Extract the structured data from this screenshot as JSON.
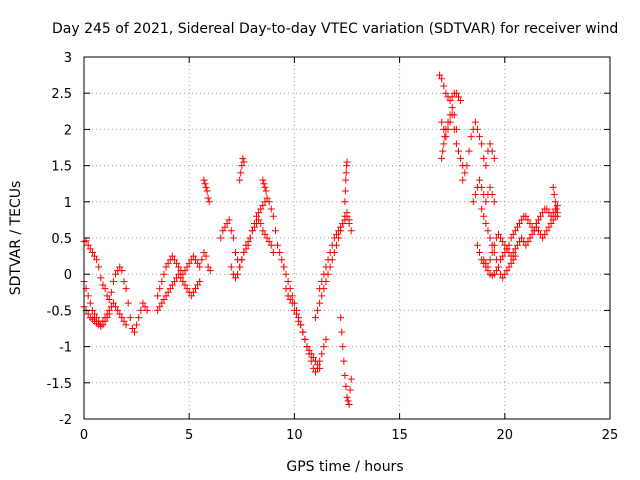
{
  "chart_data": {
    "type": "scatter",
    "title": "Day 245 of 2021, Sidereal Day-to-day VTEC variation (SDTVAR) for receiver wind",
    "xlabel": "GPS time / hours",
    "ylabel": "SDTVAR / TECUs",
    "xlim": [
      0,
      25
    ],
    "ylim": [
      -2,
      3
    ],
    "xticks": [
      0,
      5,
      10,
      15,
      20,
      25
    ],
    "xtick_labels": [
      "0",
      "5",
      "10",
      "15",
      "20",
      "25"
    ],
    "yticks": [
      -2,
      -1.5,
      -1,
      -0.5,
      0,
      0.5,
      1,
      1.5,
      2,
      2.5,
      3
    ],
    "ytick_labels": [
      "-2",
      "-1.5",
      "-1",
      "-0.5",
      "0",
      "0.5",
      "1",
      "1.5",
      "2",
      "2.5",
      "3"
    ],
    "grid": true,
    "marker": "+",
    "series": [
      {
        "name": "SDTVAR",
        "color": "#ff0000",
        "x": [
          0.0,
          0.1,
          0.2,
          0.3,
          0.4,
          0.5,
          0.6,
          0.7,
          0.8,
          0.9,
          1.0,
          1.1,
          1.2,
          1.3,
          1.4,
          1.5,
          1.6,
          1.7,
          1.8,
          1.9,
          2.0,
          2.1,
          2.2,
          2.3,
          2.4,
          2.5,
          2.6,
          2.7,
          2.8,
          2.9,
          3.0,
          0.0,
          0.1,
          0.2,
          0.3,
          0.4,
          0.5,
          0.6,
          0.7,
          0.8,
          0.9,
          1.0,
          1.1,
          1.2,
          1.3,
          1.4,
          1.5,
          1.6,
          1.7,
          1.8,
          1.9,
          2.0,
          0.0,
          0.1,
          0.2,
          0.3,
          0.4,
          0.5,
          0.6,
          0.7,
          0.8,
          0.9,
          1.0,
          1.1,
          1.2,
          3.5,
          3.6,
          3.7,
          3.8,
          3.9,
          4.0,
          4.1,
          4.2,
          4.3,
          4.4,
          4.5,
          4.6,
          4.7,
          4.8,
          4.9,
          5.0,
          5.1,
          5.2,
          5.3,
          5.4,
          5.5,
          5.6,
          5.7,
          5.8,
          5.9,
          6.0,
          3.5,
          3.6,
          3.7,
          3.8,
          3.9,
          4.0,
          4.1,
          4.2,
          4.3,
          4.4,
          4.5,
          4.6,
          4.7,
          4.8,
          4.9,
          5.0,
          5.1,
          5.2,
          5.3,
          5.4,
          5.5,
          5.7,
          5.75,
          5.8,
          5.85,
          5.9,
          5.95,
          6.5,
          6.6,
          6.7,
          6.8,
          6.9,
          7.0,
          7.1,
          7.2,
          7.3,
          7.4,
          7.5,
          7.6,
          7.7,
          7.8,
          7.9,
          8.0,
          8.1,
          8.2,
          8.3,
          8.4,
          8.5,
          8.6,
          8.7,
          8.8,
          8.9,
          9.0,
          9.1,
          9.2,
          9.3,
          9.4,
          9.5,
          7.0,
          7.1,
          7.2,
          7.3,
          7.4,
          7.5,
          7.6,
          7.7,
          7.8,
          7.9,
          8.0,
          8.1,
          8.2,
          8.3,
          8.4,
          8.5,
          8.6,
          8.7,
          8.8,
          8.9,
          9.0,
          7.4,
          7.45,
          7.5,
          7.55,
          7.6,
          8.5,
          8.55,
          8.6,
          8.65,
          9.5,
          9.6,
          9.7,
          9.8,
          9.9,
          10.0,
          10.1,
          10.2,
          10.3,
          10.4,
          10.5,
          10.6,
          10.7,
          10.8,
          10.9,
          11.0,
          11.1,
          11.2,
          11.3,
          11.4,
          11.5,
          9.6,
          9.7,
          9.8,
          9.9,
          10.0,
          10.1,
          10.2,
          10.3,
          10.4,
          10.5,
          10.6,
          10.7,
          10.8,
          10.9,
          11.0,
          11.1,
          11.2,
          11.0,
          11.1,
          11.2,
          11.3,
          11.4,
          11.5,
          11.6,
          11.7,
          11.8,
          11.9,
          12.0,
          12.1,
          12.2,
          12.3,
          12.4,
          12.5,
          12.6,
          12.7,
          11.2,
          11.3,
          11.4,
          11.5,
          11.6,
          11.7,
          11.8,
          11.9,
          12.0,
          12.1,
          12.2,
          12.3,
          12.4,
          12.5,
          12.6,
          12.2,
          12.25,
          12.3,
          12.35,
          12.4,
          12.45,
          12.5,
          12.55,
          12.6,
          12.65,
          12.7,
          12.4,
          12.42,
          12.44,
          12.46,
          12.48,
          12.5,
          16.9,
          17.0,
          17.1,
          17.2,
          17.3,
          17.4,
          17.5,
          17.6,
          17.7,
          17.8,
          17.9,
          17.0,
          17.1,
          17.2,
          17.3,
          17.4,
          17.5,
          17.6,
          17.7,
          17.8,
          17.9,
          18.0,
          17.0,
          17.05,
          17.1,
          17.15,
          17.2,
          17.3,
          17.4,
          17.5,
          17.6,
          17.7,
          18.0,
          18.1,
          18.2,
          18.3,
          18.4,
          18.5,
          18.6,
          18.7,
          18.8,
          18.9,
          19.0,
          19.1,
          19.2,
          19.3,
          19.4,
          19.5,
          18.5,
          18.6,
          18.7,
          18.8,
          18.9,
          19.0,
          19.1,
          19.2,
          19.3,
          19.4,
          19.5,
          18.7,
          18.8,
          18.9,
          19.0,
          19.1,
          19.2,
          19.3,
          19.4,
          19.5,
          19.6,
          19.7,
          19.8,
          19.9,
          20.0,
          20.1,
          20.2,
          20.3,
          20.4,
          20.5,
          20.6,
          20.7,
          20.8,
          20.9,
          21.0,
          21.1,
          21.2,
          21.3,
          21.4,
          21.5,
          21.6,
          21.7,
          21.8,
          21.9,
          22.0,
          22.1,
          22.2,
          22.3,
          22.4,
          22.5,
          19.0,
          19.1,
          19.2,
          19.3,
          19.4,
          19.5,
          19.6,
          19.7,
          19.8,
          19.9,
          20.0,
          20.1,
          20.2,
          20.3,
          20.4,
          20.5,
          20.6,
          20.7,
          20.8,
          20.9,
          21.0,
          21.1,
          21.2,
          21.3,
          21.4,
          21.5,
          21.6,
          21.7,
          21.8,
          21.9,
          22.0,
          22.1,
          22.2,
          22.3,
          22.4,
          22.5,
          18.9,
          19.0,
          19.1,
          19.2,
          19.3,
          19.4,
          19.5,
          19.6,
          19.7,
          19.8,
          19.9,
          20.0,
          20.1,
          20.2,
          20.3,
          20.4,
          20.5,
          22.3,
          22.35,
          22.4,
          22.45,
          22.5
        ],
        "y": [
          0.45,
          0.46,
          0.4,
          0.35,
          0.3,
          0.25,
          0.2,
          0.1,
          -0.05,
          -0.15,
          -0.2,
          -0.3,
          -0.35,
          -0.25,
          -0.1,
          0.0,
          0.05,
          0.1,
          0.05,
          -0.1,
          -0.2,
          -0.4,
          -0.6,
          -0.75,
          -0.8,
          -0.7,
          -0.6,
          -0.5,
          -0.4,
          -0.45,
          -0.5,
          -0.1,
          -0.2,
          -0.3,
          -0.4,
          -0.5,
          -0.55,
          -0.6,
          -0.65,
          -0.7,
          -0.65,
          -0.6,
          -0.55,
          -0.5,
          -0.45,
          -0.4,
          -0.45,
          -0.5,
          -0.55,
          -0.6,
          -0.65,
          -0.7,
          -0.45,
          -0.5,
          -0.55,
          -0.6,
          -0.62,
          -0.65,
          -0.68,
          -0.7,
          -0.72,
          -0.7,
          -0.65,
          -0.6,
          -0.55,
          -0.3,
          -0.2,
          -0.1,
          0.0,
          0.1,
          0.15,
          0.2,
          0.25,
          0.2,
          0.15,
          0.1,
          0.05,
          0.0,
          0.05,
          0.1,
          0.15,
          0.2,
          0.25,
          0.2,
          0.15,
          0.1,
          0.2,
          0.3,
          0.25,
          0.1,
          0.05,
          -0.5,
          -0.45,
          -0.4,
          -0.35,
          -0.3,
          -0.25,
          -0.2,
          -0.15,
          -0.1,
          -0.05,
          0.0,
          -0.05,
          -0.1,
          -0.15,
          -0.2,
          -0.25,
          -0.3,
          -0.25,
          -0.2,
          -0.15,
          -0.1,
          1.3,
          1.25,
          1.2,
          1.15,
          1.05,
          1.0,
          0.5,
          0.6,
          0.65,
          0.7,
          0.75,
          0.6,
          0.5,
          0.3,
          0.2,
          0.1,
          0.2,
          0.3,
          0.4,
          0.45,
          0.5,
          0.6,
          0.7,
          0.8,
          0.85,
          0.9,
          0.95,
          1.0,
          1.05,
          1.0,
          0.9,
          0.8,
          0.6,
          0.4,
          0.3,
          0.2,
          0.1,
          0.1,
          0.0,
          -0.05,
          0.0,
          0.1,
          0.2,
          0.3,
          0.35,
          0.4,
          0.5,
          0.6,
          0.65,
          0.7,
          0.75,
          0.7,
          0.6,
          0.55,
          0.5,
          0.45,
          0.4,
          0.3,
          1.3,
          1.4,
          1.5,
          1.6,
          1.55,
          1.3,
          1.25,
          1.2,
          1.15,
          0.1,
          0.0,
          -0.1,
          -0.2,
          -0.3,
          -0.4,
          -0.5,
          -0.6,
          -0.7,
          -0.8,
          -0.9,
          -1.0,
          -1.1,
          -1.2,
          -1.3,
          -1.35,
          -1.3,
          -1.2,
          -1.1,
          -1.0,
          -0.9,
          -0.2,
          -0.3,
          -0.35,
          -0.4,
          -0.5,
          -0.55,
          -0.65,
          -0.7,
          -0.8,
          -0.9,
          -1.0,
          -1.05,
          -1.1,
          -1.15,
          -1.2,
          -1.25,
          -1.3,
          -0.6,
          -0.5,
          -0.4,
          -0.3,
          -0.2,
          -0.1,
          0.0,
          0.1,
          0.2,
          0.3,
          0.4,
          0.5,
          0.6,
          0.7,
          0.8,
          0.85,
          0.75,
          0.6,
          -0.2,
          -0.1,
          0.0,
          0.1,
          0.2,
          0.3,
          0.4,
          0.5,
          0.55,
          0.6,
          0.65,
          0.7,
          0.75,
          0.8,
          0.7,
          -0.6,
          -0.8,
          -1.0,
          -1.2,
          -1.4,
          -1.55,
          -1.7,
          -1.75,
          -1.8,
          -1.6,
          -1.45,
          1.0,
          1.15,
          1.3,
          1.4,
          1.5,
          1.55,
          2.75,
          2.7,
          2.6,
          2.5,
          2.45,
          2.4,
          2.45,
          2.5,
          2.5,
          2.45,
          2.4,
          2.1,
          2.0,
          1.9,
          2.0,
          2.1,
          2.2,
          2.0,
          1.8,
          1.7,
          1.6,
          1.5,
          1.6,
          1.7,
          1.8,
          1.9,
          2.0,
          2.1,
          2.2,
          2.3,
          2.2,
          2.0,
          1.3,
          1.4,
          1.5,
          1.7,
          1.9,
          2.0,
          2.1,
          2.0,
          1.9,
          1.8,
          1.6,
          1.5,
          1.7,
          1.8,
          1.7,
          1.6,
          1.0,
          1.1,
          1.2,
          1.3,
          1.2,
          1.1,
          1.0,
          1.1,
          1.2,
          1.1,
          1.0,
          0.4,
          0.3,
          0.2,
          0.15,
          0.1,
          0.05,
          0.0,
          -0.02,
          0.0,
          0.05,
          0.1,
          0.2,
          0.25,
          0.3,
          0.35,
          0.4,
          0.5,
          0.55,
          0.6,
          0.65,
          0.7,
          0.75,
          0.8,
          0.8,
          0.75,
          0.7,
          0.65,
          0.6,
          0.7,
          0.75,
          0.8,
          0.85,
          0.9,
          0.9,
          0.85,
          0.8,
          0.85,
          0.9,
          0.95,
          0.2,
          0.15,
          0.1,
          0.2,
          0.3,
          0.4,
          0.5,
          0.55,
          0.5,
          0.45,
          0.4,
          0.35,
          0.3,
          0.25,
          0.3,
          0.35,
          0.4,
          0.45,
          0.5,
          0.45,
          0.4,
          0.45,
          0.5,
          0.55,
          0.6,
          0.65,
          0.6,
          0.55,
          0.5,
          0.55,
          0.6,
          0.65,
          0.7,
          0.75,
          0.8,
          0.85,
          0.9,
          0.8,
          0.7,
          0.6,
          0.5,
          0.4,
          0.3,
          0.2,
          0.1,
          0.0,
          -0.05,
          0.0,
          0.05,
          0.1,
          0.15,
          0.2,
          0.25,
          1.2,
          1.1,
          1.0,
          0.9,
          0.8
        ]
      }
    ]
  }
}
